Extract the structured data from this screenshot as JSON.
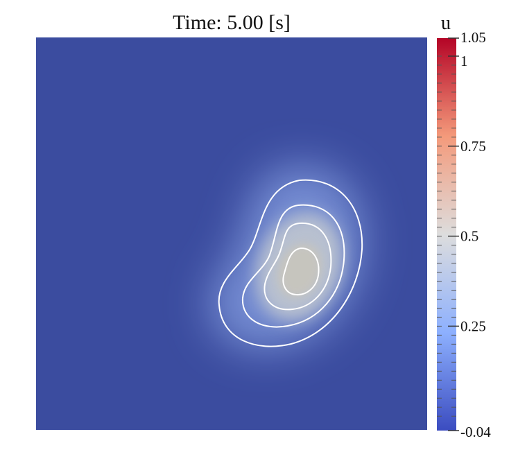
{
  "chart_data": {
    "type": "heatmap",
    "title": "Time: 5.00 [s]",
    "colorbar": {
      "label": "u",
      "min": -0.04,
      "max": 1.05,
      "ticks": [
        {
          "value": 1.05,
          "label": "1.05"
        },
        {
          "value": 1,
          "label": "1"
        },
        {
          "value": 0.75,
          "label": "0.75"
        },
        {
          "value": 0.5,
          "label": "0.5"
        },
        {
          "value": 0.25,
          "label": "0.25"
        },
        {
          "value": -0.04,
          "label": "-0.04"
        }
      ],
      "colormap": [
        "#3b4cc0",
        "#8db0fe",
        "#dddddd",
        "#f49a7b",
        "#b40426"
      ]
    },
    "field": {
      "background_value": -0.04,
      "peak_value": 0.55,
      "peak_location": [
        0.68,
        0.59
      ]
    },
    "contours": {
      "color": "#ffffff",
      "levels": [
        0.1,
        0.2,
        0.3,
        0.4
      ]
    }
  }
}
